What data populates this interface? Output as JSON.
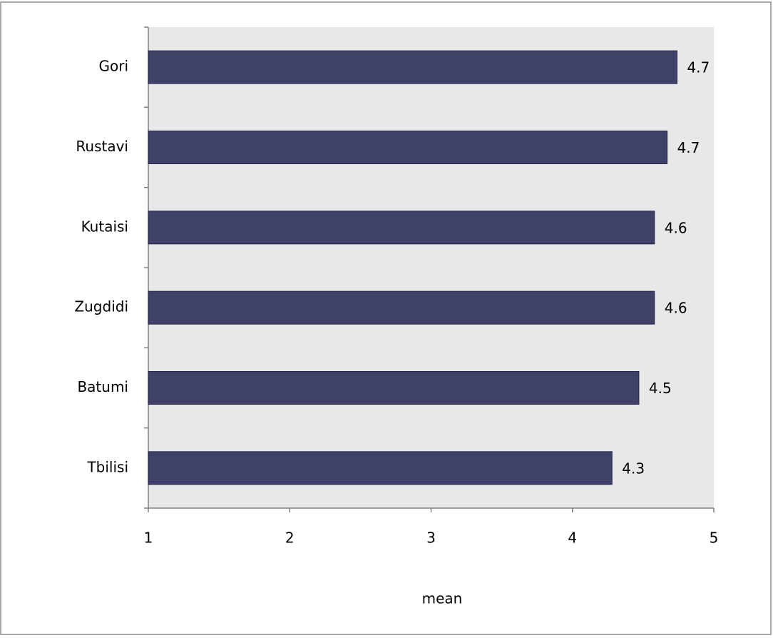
{
  "chart_data": {
    "type": "bar",
    "orientation": "horizontal",
    "categories": [
      "Gori",
      "Rustavi",
      "Kutaisi",
      "Zugdidi",
      "Batumi",
      "Tbilisi"
    ],
    "values": [
      4.74,
      4.67,
      4.58,
      4.58,
      4.47,
      4.28
    ],
    "value_labels": [
      "4.7",
      "4.7",
      "4.6",
      "4.6",
      "4.5",
      "4.3"
    ],
    "color": "#3f4169",
    "xlim": [
      1,
      5
    ],
    "xticks": [
      1,
      2,
      3,
      4,
      5
    ],
    "x_label": "mean"
  }
}
